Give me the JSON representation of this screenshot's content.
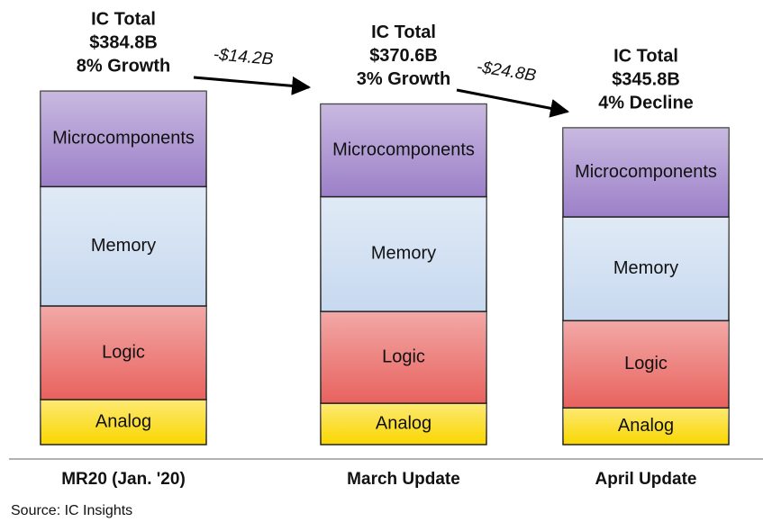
{
  "chart_data": {
    "type": "bar",
    "stacked": true,
    "categories": [
      "MR20 (Jan. '20)",
      "March Update",
      "April Update"
    ],
    "series": [
      {
        "name": "Analog",
        "color": "#fad700",
        "values": [
          49,
          45,
          40
        ]
      },
      {
        "name": "Logic",
        "color": "#e8625e",
        "values": [
          102,
          100,
          95
        ]
      },
      {
        "name": "Memory",
        "color": "#c7d9ef",
        "values": [
          130,
          125,
          113
        ]
      },
      {
        "name": "Microcomponents",
        "color": "#9c80c8",
        "values": [
          104,
          101,
          97
        ]
      }
    ],
    "totals": [
      {
        "title": "IC Total",
        "total": "$384.8B",
        "change": "8% Growth"
      },
      {
        "title": "IC Total",
        "total": "$370.6B",
        "change": "3% Growth"
      },
      {
        "title": "IC Total",
        "total": "$345.8B",
        "change": "4% Decline"
      }
    ],
    "changes": [
      "-$14.2B",
      "-$24.8B"
    ],
    "source": "Source: IC Insights"
  }
}
